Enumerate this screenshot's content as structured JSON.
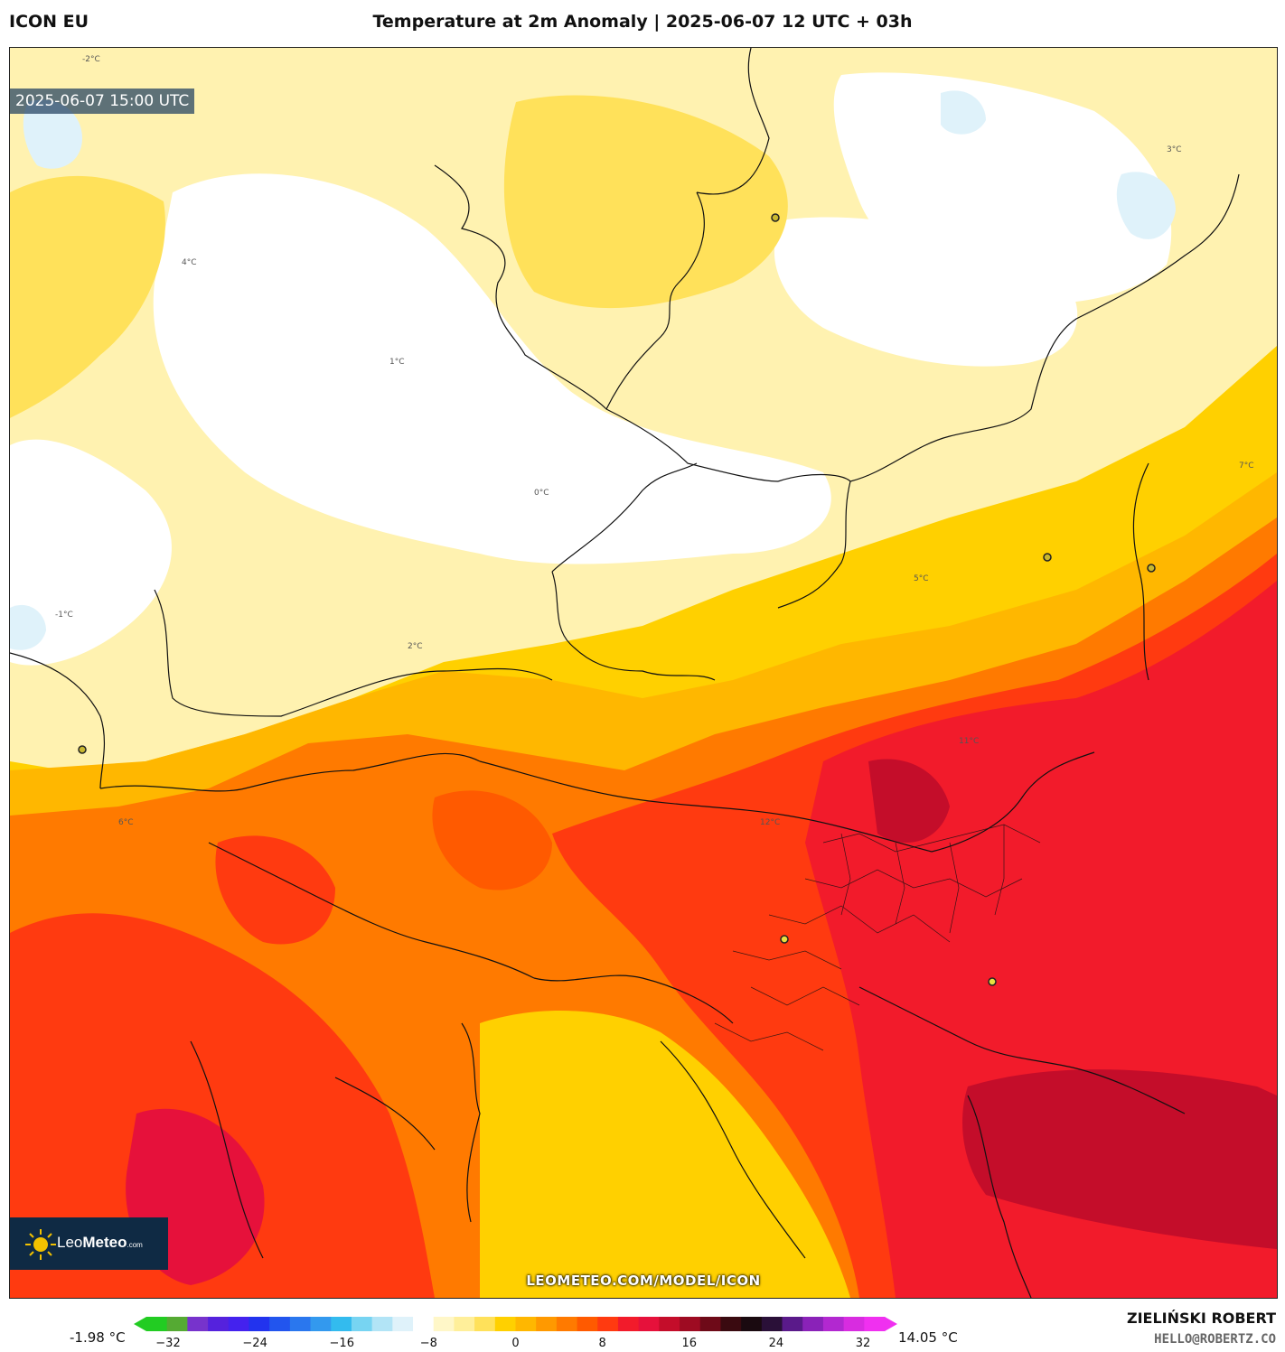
{
  "header": {
    "model": "ICON EU",
    "title": "Temperature at 2m Anomaly | 2025-06-07 12 UTC + 03h"
  },
  "map": {
    "timestamp": "2025-06-07 15:00 UTC",
    "logo": {
      "name": "Leo",
      "bold": "Meteo",
      "suffix": ".com"
    },
    "watermark": "LEOMETEO.COM/MODEL/ICON",
    "contour_labels": [
      "-2°C",
      "-1°C",
      "0°C",
      "1°C",
      "2°C",
      "3°C",
      "4°C",
      "5°C",
      "6°C",
      "7°C",
      "11°C",
      "12°C"
    ]
  },
  "legend": {
    "min_label": "-1.98 °C",
    "max_label": "14.05 °C",
    "ticks": [
      "−32",
      "−24",
      "−16",
      "−8",
      "0",
      "8",
      "16",
      "24",
      "32"
    ],
    "colors": [
      "#22cc22",
      "#55aa33",
      "#7733cc",
      "#5522dd",
      "#4422ee",
      "#2233ee",
      "#2255ee",
      "#2a77ee",
      "#3399ee",
      "#33bbee",
      "#77d4f2",
      "#b2e4f6",
      "#dff2fa",
      "#ffffff",
      "#fff7c8",
      "#ffef9a",
      "#ffe15a",
      "#ffd000",
      "#ffb700",
      "#ff9900",
      "#ff7a00",
      "#ff5a00",
      "#ff3a10",
      "#f21b2b",
      "#e6113b",
      "#c40d2a",
      "#9e0b22",
      "#6e0a18",
      "#3a0a10",
      "#1a0a10",
      "#2a1038",
      "#5a1a8a",
      "#8a22b8",
      "#b228d0",
      "#d82ce0",
      "#f030f0"
    ]
  },
  "author": {
    "name": "ZIELIŃSKI ROBERT",
    "email": "HELLO@ROBERTZ.CO"
  }
}
